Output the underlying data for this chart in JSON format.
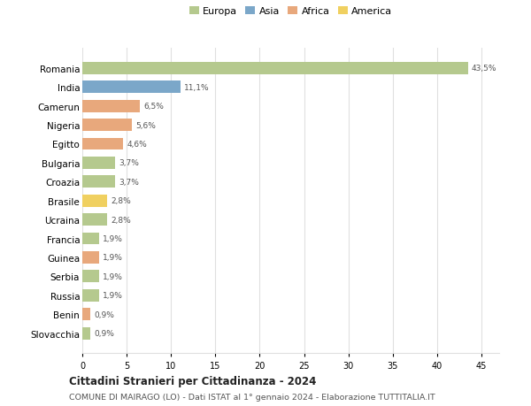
{
  "countries": [
    "Romania",
    "India",
    "Camerun",
    "Nigeria",
    "Egitto",
    "Bulgaria",
    "Croazia",
    "Brasile",
    "Ucraina",
    "Francia",
    "Guinea",
    "Serbia",
    "Russia",
    "Benin",
    "Slovacchia"
  ],
  "values": [
    43.5,
    11.1,
    6.5,
    5.6,
    4.6,
    3.7,
    3.7,
    2.8,
    2.8,
    1.9,
    1.9,
    1.9,
    1.9,
    0.9,
    0.9
  ],
  "labels": [
    "43,5%",
    "11,1%",
    "6,5%",
    "5,6%",
    "4,6%",
    "3,7%",
    "3,7%",
    "2,8%",
    "2,8%",
    "1,9%",
    "1,9%",
    "1,9%",
    "1,9%",
    "0,9%",
    "0,9%"
  ],
  "colors": [
    "#b5c98e",
    "#7ba7c9",
    "#e8a87c",
    "#e8a87c",
    "#e8a87c",
    "#b5c98e",
    "#b5c98e",
    "#f0d060",
    "#b5c98e",
    "#b5c98e",
    "#e8a87c",
    "#b5c98e",
    "#b5c98e",
    "#e8a87c",
    "#b5c98e"
  ],
  "legend": [
    {
      "label": "Europa",
      "color": "#b5c98e"
    },
    {
      "label": "Asia",
      "color": "#7ba7c9"
    },
    {
      "label": "Africa",
      "color": "#e8a87c"
    },
    {
      "label": "America",
      "color": "#f0d060"
    }
  ],
  "xlim": [
    0,
    47
  ],
  "xticks": [
    0,
    5,
    10,
    15,
    20,
    25,
    30,
    35,
    40,
    45
  ],
  "title": "Cittadini Stranieri per Cittadinanza - 2024",
  "subtitle": "COMUNE DI MAIRAGO (LO) - Dati ISTAT al 1° gennaio 2024 - Elaborazione TUTTITALIA.IT",
  "bg_color": "#ffffff",
  "grid_color": "#e0e0e0",
  "bar_height": 0.65
}
